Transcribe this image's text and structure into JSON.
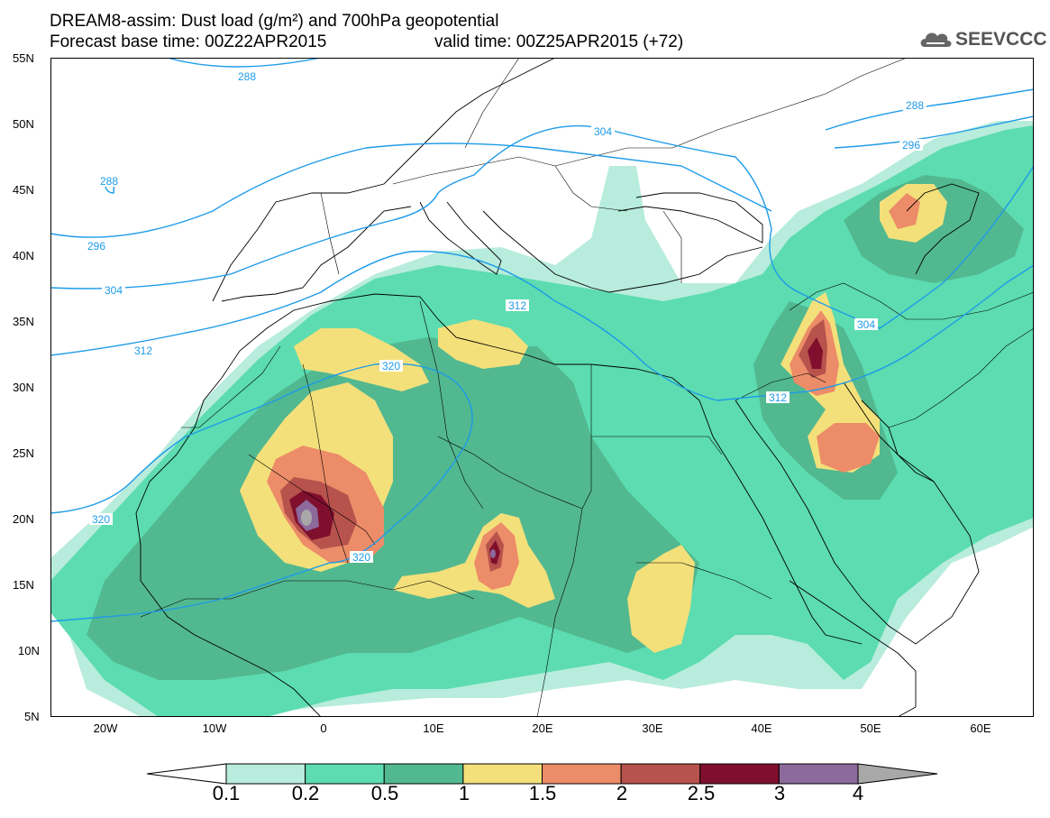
{
  "header": {
    "title_line1": "DREAM8-assim: Dust load (g/m²) and 700hPa geopotential",
    "title_line2": "Forecast base time: 00Z22APR2015",
    "valid_time": "valid time: 00Z25APR2015 (+72)",
    "logo_text": "SEEVCCC"
  },
  "map": {
    "lat_labels": [
      "55N",
      "50N",
      "45N",
      "40N",
      "35N",
      "30N",
      "25N",
      "20N",
      "15N",
      "10N",
      "5N"
    ],
    "lon_labels": [
      "20W",
      "10W",
      "0",
      "10E",
      "20E",
      "30E",
      "40E",
      "50E",
      "60E"
    ],
    "contour_labels": [
      "288",
      "288",
      "288",
      "296",
      "296",
      "304",
      "304",
      "304",
      "312",
      "312",
      "312",
      "320",
      "320",
      "320"
    ]
  },
  "colorbar": {
    "levels": [
      "0.1",
      "0.2",
      "0.5",
      "1",
      "1.5",
      "2",
      "2.5",
      "3",
      "4"
    ],
    "colors": [
      "#b8ecdc",
      "#5cdcb0",
      "#52b890",
      "#f4e07a",
      "#ec8c68",
      "#b8524c",
      "#800f2e",
      "#8c6a9c"
    ],
    "arrow_low_color": "#ffffff",
    "arrow_high_color": "#a8a8a8"
  }
}
